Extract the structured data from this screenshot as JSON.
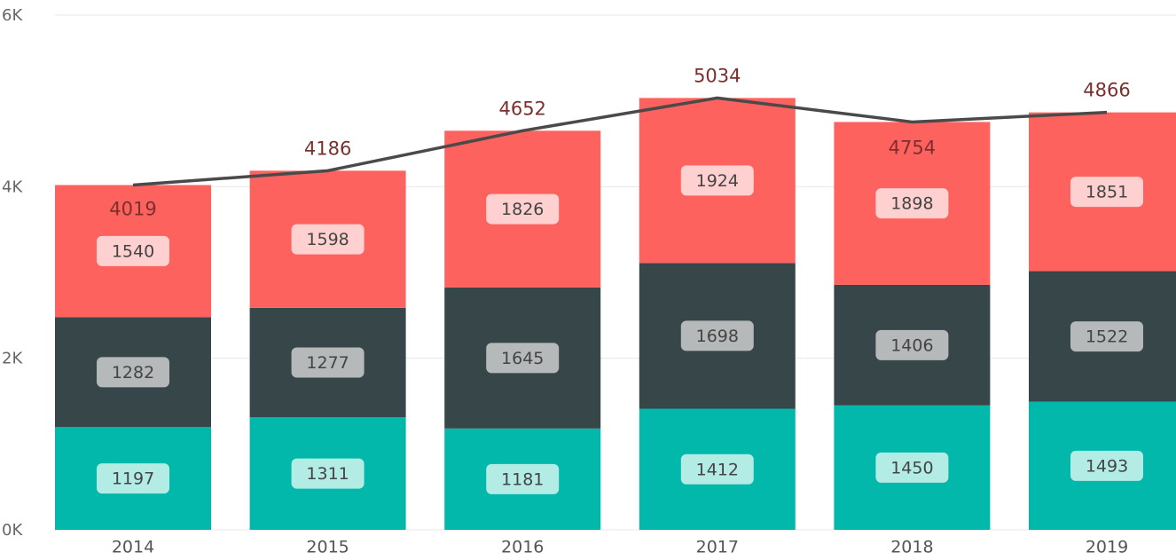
{
  "chart_data": {
    "type": "combo",
    "categories": [
      "2014",
      "2015",
      "2016",
      "2017",
      "2018",
      "2019"
    ],
    "series": [
      {
        "type": "bar",
        "color": "#01b8aa",
        "label_color": "#b3ebe5",
        "values": [
          1197,
          1311,
          1181,
          1412,
          1450,
          1493
        ]
      },
      {
        "type": "bar",
        "color": "#374649",
        "label_color": "#b5b9ba",
        "values": [
          1282,
          1277,
          1645,
          1698,
          1406,
          1522
        ]
      },
      {
        "type": "bar",
        "color": "#fd625e",
        "label_color": "#fed0cf",
        "values": [
          1540,
          1598,
          1826,
          1924,
          1898,
          1851
        ]
      },
      {
        "type": "line",
        "color": "#4a4a4a",
        "values": [
          4019,
          4186,
          4652,
          5034,
          4754,
          4866
        ]
      }
    ],
    "stacked": true,
    "ylim": [
      0,
      6000
    ],
    "yticks": [
      {
        "value": 0,
        "label": "0K"
      },
      {
        "value": 2000,
        "label": "2K"
      },
      {
        "value": 4000,
        "label": "4K"
      },
      {
        "value": 6000,
        "label": "6K"
      }
    ],
    "grid": true
  }
}
